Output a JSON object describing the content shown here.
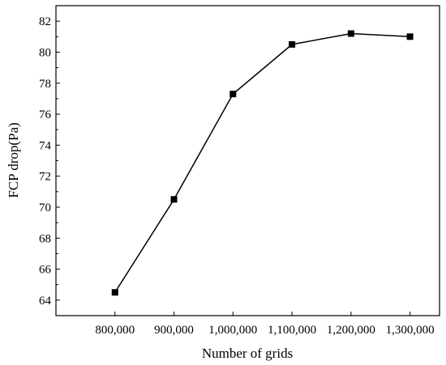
{
  "chart_data": {
    "type": "line",
    "title": "",
    "xlabel": "Number of grids",
    "ylabel": "FCP drop(Pa)",
    "x": [
      800000,
      900000,
      1000000,
      1100000,
      1200000,
      1300000
    ],
    "x_tick_labels": [
      "800,000",
      "900,000",
      "1,000,000",
      "1,100,000",
      "1,200,000",
      "1,300,000"
    ],
    "y_ticks": [
      64,
      66,
      68,
      70,
      72,
      74,
      76,
      78,
      80,
      82
    ],
    "xlim": [
      700000,
      1350000
    ],
    "ylim": [
      63,
      83
    ],
    "series": [
      {
        "values": [
          64.5,
          70.5,
          77.3,
          80.5,
          81.2,
          81.0
        ],
        "color": "#000000",
        "marker": "square"
      }
    ],
    "grid": false,
    "legend": "none"
  }
}
